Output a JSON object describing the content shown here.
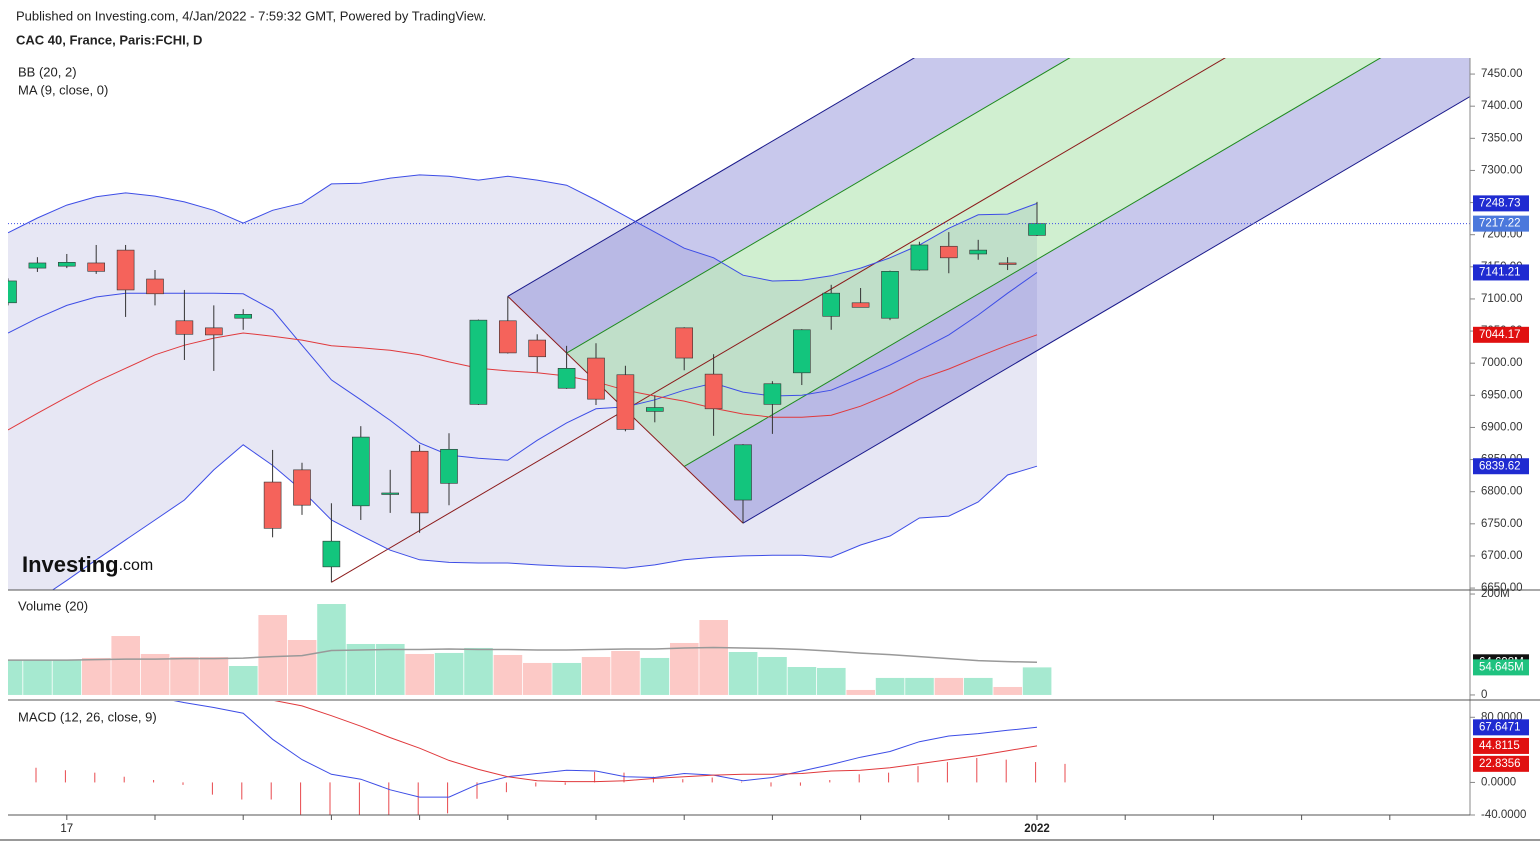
{
  "header": {
    "published": "Published on Investing.com, 4/Jan/2022 - 7:59:32 GMT, Powered by TradingView.",
    "symbol": "CAC 40, France, Paris:FCHI, D"
  },
  "logo": {
    "brand": "Investing",
    "suffix": ".com"
  },
  "chart_data": {
    "type": "candlestick",
    "categories": [
      null,
      null,
      "17",
      null,
      null,
      null,
      null,
      null,
      null,
      null,
      null,
      null,
      null,
      null,
      null,
      null,
      null,
      null,
      null,
      null,
      null,
      null,
      null,
      null,
      null,
      null,
      null,
      null,
      null,
      null,
      null,
      null,
      null,
      null,
      null,
      "2022"
    ],
    "candles": {
      "open": [
        7094,
        7148,
        7151,
        7156,
        7176,
        7131,
        7066,
        7055,
        7070,
        6815,
        6834,
        6683,
        6778,
        6797,
        6863,
        6813,
        6936,
        7066,
        7036,
        6961,
        7008,
        6982,
        6925,
        7055,
        6983,
        6787,
        6936,
        6985,
        7073,
        7094,
        7070,
        7145,
        7182,
        7170,
        7156,
        7199
      ],
      "high": [
        7132,
        7165,
        7170,
        7184,
        7184,
        7145,
        7114,
        7090,
        7084,
        6865,
        6845,
        6782,
        6902,
        6834,
        6873,
        6891,
        7068,
        7104,
        7045,
        7027,
        7031,
        6996,
        6950,
        7056,
        7014,
        6874,
        6972,
        7053,
        7122,
        7117,
        7144,
        7189,
        7204,
        7192,
        7165,
        7251
      ],
      "low": [
        7090,
        7142,
        7148,
        7139,
        7072,
        7090,
        7005,
        6988,
        7052,
        6729,
        6764,
        6659,
        6756,
        6767,
        6736,
        6779,
        6935,
        7015,
        6986,
        6960,
        6935,
        6894,
        6908,
        6989,
        6887,
        6751,
        6890,
        6966,
        7052,
        7087,
        7067,
        7144,
        7140,
        7161,
        7145,
        7198
      ],
      "close": [
        7128,
        7156,
        7157,
        7143,
        7114,
        7108,
        7045,
        7044,
        7076,
        6743,
        6779,
        6723,
        6885,
        6798,
        6767,
        6866,
        7067,
        7016,
        7010,
        6992,
        6944,
        6897,
        6931,
        7008,
        6929,
        6873,
        6968,
        7052,
        7109,
        7087,
        7143,
        7184,
        7164,
        7176,
        7155,
        7217.22
      ]
    },
    "up_color": "#13c57d",
    "down_color": "#f5635b",
    "ylim": [
      6647,
      7475
    ],
    "yticks": [
      {
        "value": 6650,
        "label": "6650.00"
      },
      {
        "value": 6700,
        "label": "6700.00"
      },
      {
        "value": 6750,
        "label": "6750.00"
      },
      {
        "value": 6800,
        "label": "6800.00"
      },
      {
        "value": 6850,
        "label": "6850.00"
      },
      {
        "value": 6900,
        "label": "6900.00"
      },
      {
        "value": 6950,
        "label": "6950.00"
      },
      {
        "value": 7000,
        "label": "7000.00"
      },
      {
        "value": 7050,
        "label": "7050.00"
      },
      {
        "value": 7100,
        "label": "7100.00"
      },
      {
        "value": 7150,
        "label": "7150.00"
      },
      {
        "value": 7200,
        "label": "7200.00"
      },
      {
        "value": 7250,
        "label": "7250.00"
      },
      {
        "value": 7300,
        "label": "7300.00"
      },
      {
        "value": 7350,
        "label": "7350.00"
      },
      {
        "value": 7400,
        "label": "7400.00"
      },
      {
        "value": 7450,
        "label": "7450.00"
      }
    ],
    "bb": {
      "label": "BB (20, 2)",
      "color": "#3d4de6",
      "fill": "#e4e4f3",
      "upper": [
        7203,
        7226,
        7246,
        7259,
        7265,
        7260,
        7251,
        7238,
        7218,
        7238,
        7249,
        7279,
        7280,
        7288,
        7293,
        7291,
        7285,
        7291,
        7285,
        7277,
        7254,
        7229,
        7204,
        7179,
        7164,
        7137,
        7128,
        7129,
        7136,
        7148,
        7164,
        7184,
        7210,
        7231,
        7232,
        7248.73
      ],
      "basis": [
        7047,
        7070,
        7090,
        7103,
        7109,
        7109,
        7109,
        7109,
        7108,
        7083,
        7028,
        6974,
        6943,
        6911,
        6876,
        6857,
        6852,
        6849,
        6880,
        6907,
        6929,
        6932,
        6943,
        6958,
        6969,
        6955,
        6949,
        6950,
        6958,
        6977,
        6997,
        7020,
        7044,
        7075,
        7109,
        7141.21
      ],
      "lower": [
        6616,
        6631,
        6662,
        6694,
        6725,
        6756,
        6787,
        6834,
        6873,
        6841,
        6802,
        6756,
        6732,
        6709,
        6694,
        6690,
        6689,
        6689,
        6686,
        6684,
        6683,
        6681,
        6686,
        6694,
        6698,
        6700,
        6701,
        6701,
        6698,
        6717,
        6731,
        6759,
        6762,
        6784,
        6826,
        6839.62
      ]
    },
    "ma": {
      "label": "MA (9, close, 0)",
      "color": "#e0393c",
      "values": [
        6896,
        6922,
        6947,
        6971,
        6992,
        7013,
        7028,
        7039,
        7047,
        7042,
        7036,
        7027,
        7024,
        7020,
        7013,
        7002,
        6992,
        6988,
        6985,
        6980,
        6971,
        6958,
        6949,
        6941,
        6930,
        6921,
        6916,
        6916,
        6919,
        6933,
        6952,
        6975,
        6991,
        7010,
        7028,
        7044.17
      ]
    },
    "pitchfork": [
      {
        "index": 11,
        "price": 6659
      },
      {
        "index": 17,
        "price": 7104
      },
      {
        "index": 25,
        "price": 6751
      }
    ],
    "volume": {
      "label": "Volume (20)",
      "up_color": "#a6e9d0",
      "down_color": "#fcc9c6",
      "ma_color": "#999999",
      "values": [
        69.3,
        69.3,
        69.3,
        73.3,
        116.8,
        81.2,
        75.2,
        75.2,
        57.4,
        158.4,
        108.9,
        180.2,
        101,
        101,
        81.2,
        83.2,
        93.1,
        79.2,
        63.4,
        63.4,
        75.2,
        87.1,
        73.3,
        103,
        148.5,
        85.1,
        75.2,
        55.4,
        53.5,
        9.9,
        33.7,
        33.7,
        33.7,
        33.7,
        15.8,
        54.645
      ],
      "last_label": "54.645M",
      "ma": [
        69,
        69,
        69,
        70,
        71,
        71,
        72,
        72,
        73,
        76,
        78,
        88,
        89,
        90,
        90,
        91,
        90,
        90,
        89,
        89,
        90,
        91,
        91,
        93,
        94,
        93,
        92,
        90,
        87,
        83,
        80,
        76,
        72,
        68,
        66,
        64.698
      ],
      "ma_last_label": "64.698M",
      "ylim": [
        -10,
        206
      ],
      "yticks": [
        0,
        {
          "value": 200,
          "label": "200M"
        }
      ]
    },
    "macd": {
      "label": "MACD (12, 26, close, 9)",
      "macd_color": "#3d4de6",
      "signal_color": "#e0393c",
      "hist_color": "#e8484c",
      "macd": [
        130,
        128,
        124,
        118,
        112,
        105,
        98,
        92,
        85,
        53,
        28,
        10,
        4,
        -9,
        -18,
        -18,
        -2,
        7,
        11,
        15,
        14,
        7,
        6,
        11,
        9,
        2,
        6,
        14,
        22,
        31,
        38,
        50,
        57,
        60,
        64,
        67.6471
      ],
      "signal": [
        150,
        145,
        140,
        135,
        130,
        125,
        120,
        115,
        110,
        101,
        94,
        82,
        69,
        55,
        42,
        27,
        16,
        7,
        2,
        1,
        1,
        2,
        5,
        7,
        9,
        10,
        10,
        11,
        14,
        15,
        18,
        23,
        28,
        33,
        39,
        44.8115
      ],
      "histogram": [
        18,
        15,
        12,
        7,
        3,
        -3,
        -15,
        -21,
        -21,
        -40,
        -40,
        -40,
        -40,
        -40,
        -38,
        -20,
        -12,
        -5,
        -3,
        13,
        12,
        7,
        4,
        6,
        1,
        -5,
        -4,
        3,
        10,
        12,
        20,
        25,
        30,
        28,
        25,
        22.8356
      ],
      "ylim": [
        -40,
        100
      ],
      "yticks": [
        {
          "value": -40,
          "label": "-40.0000"
        },
        {
          "value": 0,
          "label": "0.0000"
        },
        {
          "value": 80,
          "label": "80.0000"
        }
      ]
    }
  }
}
